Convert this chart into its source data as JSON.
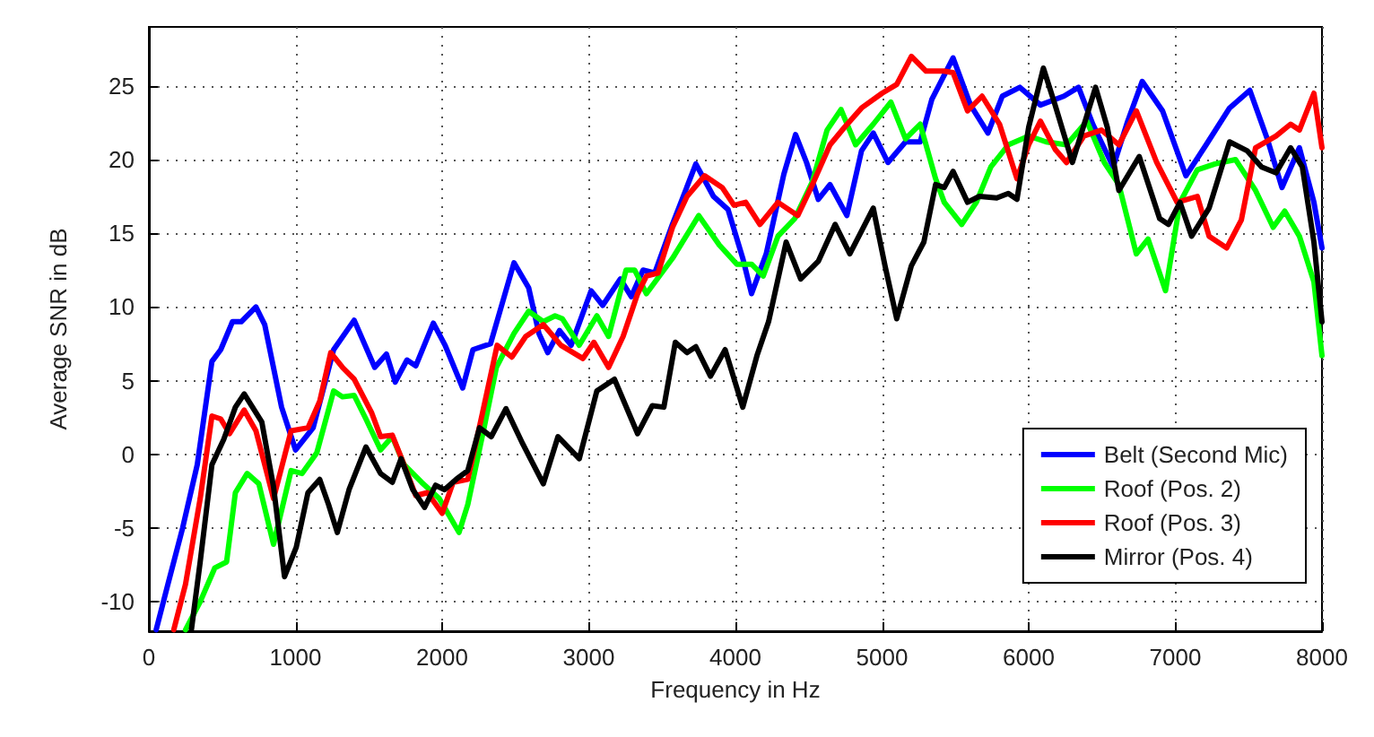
{
  "chart_data": {
    "type": "line",
    "xlabel": "Frequency in Hz",
    "ylabel": "Average SNR in dB",
    "xlim": [
      0,
      8000
    ],
    "ylim": [
      -12,
      29
    ],
    "xticks": [
      0,
      1000,
      2000,
      3000,
      4000,
      5000,
      6000,
      7000,
      8000
    ],
    "yticks": [
      -10,
      -5,
      0,
      5,
      10,
      15,
      20,
      25
    ],
    "grid": true,
    "legend": "bottom right",
    "marker": "none",
    "line_style": "solid",
    "series": [
      {
        "name": "Belt (Second Mic)",
        "color": "#0000ff",
        "x": [
          50,
          130,
          230,
          330,
          430,
          490,
          570,
          630,
          730,
          790,
          905,
          1000,
          1120,
          1260,
          1400,
          1540,
          1620,
          1680,
          1760,
          1820,
          1940,
          2020,
          2140,
          2210,
          2330,
          2490,
          2590,
          2660,
          2720,
          2800,
          2880,
          3016,
          3095,
          3215,
          3290,
          3370,
          3450,
          3570,
          3730,
          3850,
          3950,
          4050,
          4110,
          4210,
          4330,
          4410,
          4485,
          4565,
          4645,
          4760,
          4860,
          4940,
          5040,
          5160,
          5260,
          5340,
          5484,
          5603,
          5722,
          5820,
          5940,
          6080,
          6240,
          6340,
          6437,
          6576,
          6675,
          6774,
          6913,
          7072,
          7210,
          7370,
          7508,
          7627,
          7727,
          7846,
          7945,
          8000
        ],
        "values": [
          -11.9,
          -8.8,
          -5,
          -0.7,
          6.3,
          7.1,
          9,
          9,
          10,
          8.8,
          3.2,
          0.3,
          1.8,
          7.1,
          9.1,
          5.9,
          6.8,
          4.9,
          6.4,
          6,
          8.9,
          7.4,
          4.5,
          7.1,
          7.5,
          13,
          11.3,
          8.2,
          6.9,
          8.4,
          7.4,
          11.1,
          10.1,
          11.9,
          10.7,
          12.5,
          12.3,
          15.6,
          19.7,
          17.5,
          16.6,
          13.3,
          10.9,
          13.6,
          19,
          21.7,
          19.8,
          17.3,
          18.3,
          16.2,
          20.6,
          21.8,
          19.8,
          21.2,
          21.2,
          24.1,
          26.9,
          23.7,
          21.8,
          24.3,
          24.9,
          23.7,
          24.3,
          24.9,
          22.4,
          19.5,
          22.6,
          25.3,
          23.3,
          18.9,
          21,
          23.5,
          24.7,
          21.4,
          18.1,
          20.8,
          17.1,
          14
        ]
      },
      {
        "name": "Roof (Pos. 2)",
        "color": "#00ff00",
        "x": [
          250,
          350,
          450,
          530,
          590,
          670,
          750,
          850,
          970,
          1045,
          1145,
          1260,
          1320,
          1400,
          1480,
          1580,
          1660,
          1740,
          1860,
          1980,
          2115,
          2175,
          2290,
          2370,
          2490,
          2590,
          2690,
          2770,
          2820,
          2935,
          3055,
          3135,
          3254,
          3313,
          3393,
          3571,
          3750,
          3890,
          4010,
          4110,
          4190,
          4290,
          4405,
          4525,
          4625,
          4720,
          4820,
          4940,
          5060,
          5160,
          5260,
          5365,
          5424,
          5543,
          5643,
          5742,
          5861,
          6000,
          6119,
          6258,
          6397,
          6516,
          6615,
          6734,
          6814,
          6933,
          7032,
          7150,
          7270,
          7410,
          7547,
          7667,
          7746,
          7846,
          7945,
          8000
        ],
        "values": [
          -11.9,
          -10,
          -7.7,
          -7.3,
          -2.6,
          -1.3,
          -2,
          -6.1,
          -1.1,
          -1.3,
          0.1,
          4.3,
          3.9,
          4,
          2.4,
          0.3,
          1.2,
          -0.7,
          -1.9,
          -3,
          -5.3,
          -3.4,
          2,
          5.9,
          8.2,
          9.7,
          9,
          9.4,
          9.2,
          7.4,
          9.4,
          8,
          12.5,
          12.5,
          10.9,
          13.3,
          16.2,
          14.2,
          12.9,
          12.9,
          12.1,
          14.8,
          16,
          18.5,
          22,
          23.4,
          21,
          22.4,
          23.9,
          21.4,
          22.4,
          18.7,
          17.1,
          15.6,
          17.1,
          19.5,
          21,
          21.6,
          21.2,
          21,
          22.6,
          19.8,
          18.3,
          13.6,
          14.6,
          11.1,
          17.1,
          19.3,
          19.7,
          20,
          17.9,
          15.4,
          16.5,
          14.8,
          11.7,
          6.7
        ]
      },
      {
        "name": "Roof (Pos. 3)",
        "color": "#ff0000",
        "x": [
          170,
          250,
          350,
          430,
          490,
          550,
          650,
          730,
          850,
          970,
          1085,
          1165,
          1240,
          1320,
          1400,
          1520,
          1580,
          1660,
          1740,
          1820,
          1900,
          2000,
          2075,
          2175,
          2275,
          2375,
          2475,
          2570,
          2690,
          2810,
          2960,
          3035,
          3135,
          3234,
          3333,
          3393,
          3472,
          3571,
          3670,
          3790,
          3910,
          3990,
          4070,
          4167,
          4290,
          4425,
          4525,
          4645,
          4745,
          4860,
          5000,
          5100,
          5200,
          5300,
          5420,
          5484,
          5583,
          5682,
          5801,
          5920,
          6000,
          6080,
          6180,
          6258,
          6377,
          6496,
          6615,
          6734,
          6873,
          7012,
          7150,
          7230,
          7350,
          7450,
          7547,
          7687,
          7786,
          7846,
          7945,
          8000
        ],
        "values": [
          -11.9,
          -8.8,
          -3,
          2.6,
          2.4,
          1.4,
          3,
          1.6,
          -3,
          1.6,
          1.8,
          3.6,
          6.9,
          5.9,
          5.1,
          2.8,
          1.2,
          1.3,
          -0.7,
          -2.8,
          -2.6,
          -4,
          -1.9,
          -1.7,
          2.8,
          7.4,
          6.6,
          8,
          8.8,
          7.4,
          6.5,
          7.6,
          5.9,
          8,
          10.9,
          12.1,
          12.3,
          15.4,
          17.5,
          18.9,
          18.1,
          16.9,
          17.1,
          15.6,
          17.1,
          16.2,
          18.3,
          21,
          22.2,
          23.5,
          24.5,
          25.1,
          27,
          26,
          26,
          25.9,
          23.3,
          24.3,
          22.4,
          18.7,
          21,
          22.6,
          20.7,
          19.8,
          21.6,
          22,
          21,
          23.3,
          19.8,
          17.1,
          17.5,
          14.8,
          14,
          15.9,
          20.8,
          21.6,
          22.4,
          22,
          24.5,
          20.8
        ]
      },
      {
        "name": "Mirror (Pos. 4)",
        "color": "#000000",
        "x": [
          290,
          350,
          430,
          510,
          590,
          650,
          770,
          850,
          925,
          1005,
          1085,
          1165,
          1225,
          1285,
          1365,
          1480,
          1580,
          1660,
          1720,
          1800,
          1880,
          1955,
          2015,
          2095,
          2175,
          2255,
          2335,
          2435,
          2550,
          2690,
          2790,
          2935,
          3055,
          3175,
          3333,
          3433,
          3512,
          3590,
          3670,
          3730,
          3830,
          3930,
          4050,
          4147,
          4226,
          4346,
          4445,
          4565,
          4680,
          4780,
          4940,
          5020,
          5100,
          5200,
          5285,
          5365,
          5424,
          5484,
          5583,
          5663,
          5782,
          5861,
          5920,
          6000,
          6100,
          6180,
          6298,
          6456,
          6536,
          6615,
          6754,
          6893,
          6953,
          7032,
          7111,
          7230,
          7370,
          7489,
          7588,
          7687,
          7786,
          7866,
          7945,
          8000
        ],
        "values": [
          -11.9,
          -7.3,
          -0.7,
          1,
          3.2,
          4.1,
          2.2,
          -2.2,
          -8.3,
          -6.3,
          -2.6,
          -1.7,
          -3.4,
          -5.3,
          -2.4,
          0.5,
          -1.3,
          -1.9,
          -0.3,
          -2.4,
          -3.6,
          -2.1,
          -2.4,
          -1.7,
          -1.1,
          1.8,
          1.2,
          3.1,
          0.7,
          -2,
          1.2,
          -0.3,
          4.3,
          5.1,
          1.4,
          3.3,
          3.2,
          7.6,
          6.9,
          7.3,
          5.3,
          7.1,
          3.2,
          6.7,
          9,
          14.4,
          11.9,
          13.1,
          15.6,
          13.6,
          16.7,
          12.8,
          9.2,
          12.8,
          14.4,
          18.3,
          18.1,
          19.2,
          17.1,
          17.5,
          17.4,
          17.7,
          17.3,
          22.2,
          26.2,
          23.7,
          19.8,
          24.9,
          22.2,
          17.9,
          20.2,
          16,
          15.6,
          17.1,
          14.8,
          16.7,
          21.2,
          20.6,
          19.5,
          19.1,
          20.8,
          19.5,
          14.4,
          9
        ]
      }
    ]
  }
}
